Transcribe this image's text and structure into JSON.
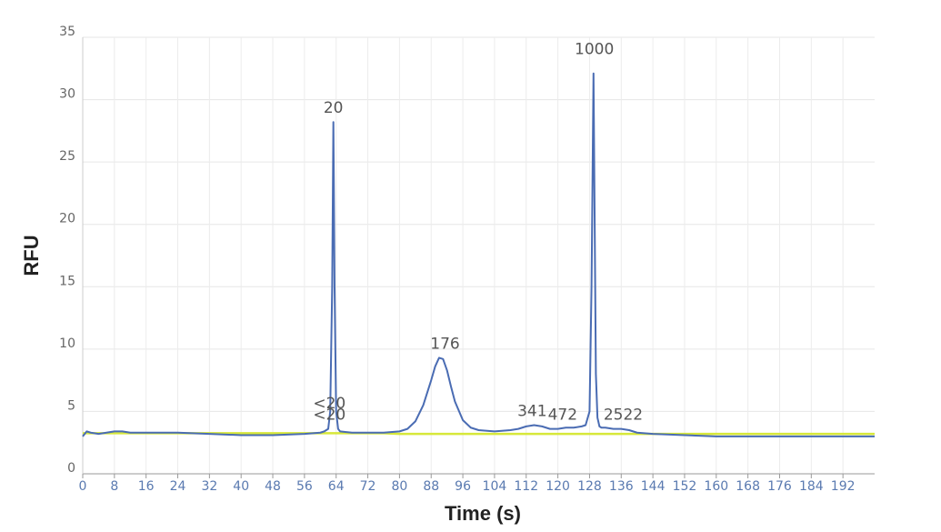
{
  "chart_data": {
    "type": "line",
    "xlabel": "Time (s)",
    "ylabel": "RFU",
    "xlim": [
      0,
      200
    ],
    "ylim": [
      0,
      35
    ],
    "xticks": [
      0,
      8,
      16,
      24,
      32,
      40,
      48,
      56,
      64,
      72,
      80,
      88,
      96,
      104,
      112,
      120,
      128,
      136,
      144,
      152,
      160,
      168,
      176,
      184,
      192
    ],
    "yticks": [
      0,
      5,
      10,
      15,
      20,
      25,
      30,
      35
    ],
    "grid": true,
    "x": [
      0,
      1,
      2,
      4,
      8,
      10,
      12,
      16,
      24,
      32,
      40,
      48,
      56,
      60,
      61,
      62,
      62.5,
      63,
      63.3,
      63.6,
      64,
      64.5,
      65,
      68,
      72,
      76,
      80,
      82,
      84,
      86,
      88,
      89,
      90,
      91,
      92,
      93,
      94,
      96,
      98,
      100,
      104,
      108,
      110,
      112,
      114,
      116,
      118,
      120,
      122,
      124,
      126,
      127,
      128,
      128.5,
      129,
      129.3,
      129.6,
      130,
      130.5,
      131,
      132,
      134,
      136,
      138,
      140,
      144,
      152,
      160,
      168,
      176,
      184,
      192,
      200
    ],
    "series": [
      {
        "color": "#4a6cb3",
        "values": [
          3.0,
          3.4,
          3.3,
          3.2,
          3.4,
          3.4,
          3.3,
          3.3,
          3.3,
          3.2,
          3.1,
          3.1,
          3.2,
          3.3,
          3.4,
          3.6,
          5,
          15,
          28.2,
          15,
          5,
          3.6,
          3.4,
          3.3,
          3.3,
          3.3,
          3.4,
          3.6,
          4.2,
          5.5,
          7.5,
          8.6,
          9.3,
          9.2,
          8.3,
          7.0,
          5.8,
          4.3,
          3.7,
          3.5,
          3.4,
          3.5,
          3.6,
          3.8,
          3.9,
          3.8,
          3.6,
          3.6,
          3.7,
          3.7,
          3.8,
          3.9,
          5,
          15,
          32.1,
          20,
          8,
          4.5,
          3.8,
          3.7,
          3.7,
          3.6,
          3.6,
          3.5,
          3.3,
          3.2,
          3.1,
          3.0,
          3.0,
          3.0,
          3.0,
          3.0,
          3.0
        ]
      },
      {
        "color": "#d7e83a",
        "values": [
          3.25,
          3.25,
          3.25,
          3.25,
          3.25,
          3.25,
          3.25,
          3.25,
          3.25,
          3.25,
          3.25,
          3.25,
          3.25,
          3.25,
          3.25,
          3.25,
          3.25,
          3.25,
          3.25,
          3.25,
          3.25,
          3.25,
          3.25,
          3.25,
          3.25,
          3.25,
          3.2,
          3.2,
          3.2,
          3.2,
          3.2,
          3.2,
          3.2,
          3.2,
          3.2,
          3.2,
          3.2,
          3.2,
          3.2,
          3.2,
          3.2,
          3.2,
          3.2,
          3.2,
          3.2,
          3.2,
          3.2,
          3.2,
          3.2,
          3.2,
          3.2,
          3.2,
          3.2,
          3.2,
          3.2,
          3.2,
          3.2,
          3.2,
          3.2,
          3.2,
          3.2,
          3.2,
          3.2,
          3.2,
          3.2,
          3.2,
          3.2,
          3.2,
          3.2,
          3.2,
          3.2,
          3.2,
          3.2
        ]
      }
    ],
    "annotations": [
      {
        "label": "<20",
        "x": 62.3,
        "y": 5.6
      },
      {
        "label": "<20",
        "x": 62.3,
        "y": 4.7
      },
      {
        "label": "20",
        "x": 63.3,
        "y": 29.3
      },
      {
        "label": "176",
        "x": 91.5,
        "y": 10.4
      },
      {
        "label": "341",
        "x": 113.5,
        "y": 5.0
      },
      {
        "label": "472",
        "x": 121.2,
        "y": 4.7
      },
      {
        "label": "1000",
        "x": 129.2,
        "y": 34.0
      },
      {
        "label": "2522",
        "x": 136.5,
        "y": 4.7
      }
    ]
  }
}
